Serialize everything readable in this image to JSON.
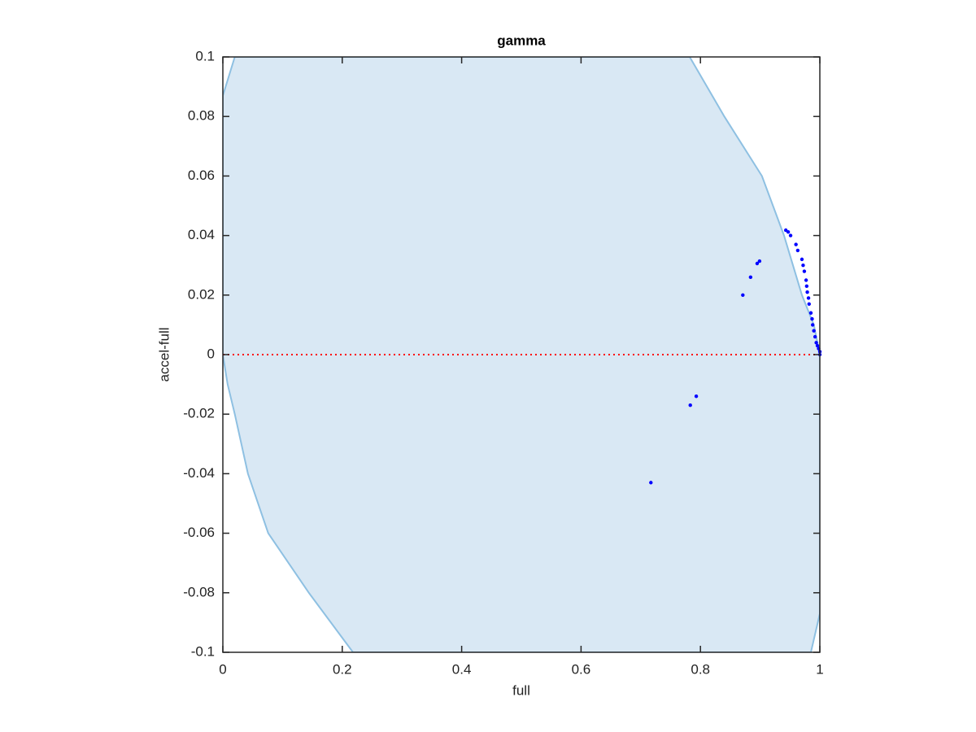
{
  "chart_data": {
    "type": "scatter",
    "title": "gamma",
    "x_label": "full",
    "y_label": "accel-full",
    "xlim": [
      0,
      1
    ],
    "ylim": [
      -0.1,
      0.1
    ],
    "xticks": [
      0,
      0.2,
      0.4,
      0.6,
      0.8,
      1
    ],
    "yticks": [
      -0.1,
      -0.08,
      -0.06,
      -0.04,
      -0.02,
      0,
      0.02,
      0.04,
      0.06,
      0.08,
      0.1
    ],
    "series": [
      {
        "type": "area",
        "color": "#d9e8f4",
        "edge_color": "#8ec0e2",
        "x": [
          0.02,
          0.782,
          0.84,
          0.903,
          0.94,
          0.97,
          0.99,
          1,
          1,
          0.985,
          0.218,
          0.144,
          0.076,
          0.042,
          0.02,
          0.008,
          0,
          0
        ],
        "y": [
          0.1,
          0.1,
          0.08,
          0.06,
          0.04,
          0.02,
          0.01,
          0,
          -0.087,
          -0.1,
          -0.1,
          -0.08,
          -0.06,
          -0.04,
          -0.02,
          -0.01,
          0,
          0.087
        ]
      },
      {
        "type": "scatter",
        "color": "#0000ff",
        "x": [
          0.717,
          0.783,
          0.793,
          0.871,
          0.884,
          0.895,
          0.899,
          0.943,
          0.947,
          0.951,
          0.96,
          0.963,
          0.97,
          0.972,
          0.974,
          0.977,
          0.978,
          0.979,
          0.981,
          0.982,
          0.985,
          0.987,
          0.988,
          0.99,
          0.992,
          0.994,
          0.996,
          0.998,
          1,
          1
        ],
        "y": [
          -0.043,
          -0.017,
          -0.014,
          0.02,
          0.026,
          0.0306,
          0.0314,
          0.0418,
          0.0412,
          0.04,
          0.037,
          0.035,
          0.032,
          0.03,
          0.028,
          0.025,
          0.023,
          0.021,
          0.019,
          0.017,
          0.014,
          0.012,
          0.01,
          0.008,
          0.006,
          0.004,
          0.003,
          0.002,
          0.001,
          0
        ]
      }
    ],
    "reference_line": {
      "y": 0,
      "color": "#ff0000"
    }
  }
}
